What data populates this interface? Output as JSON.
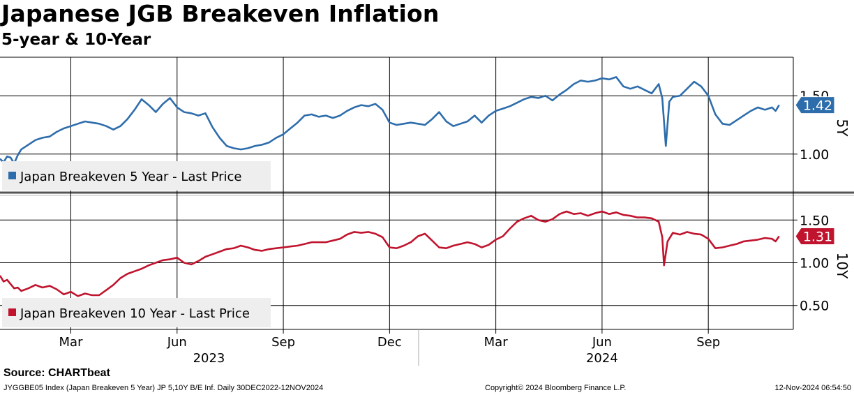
{
  "title": "Japanese JGB Breakeven Inflation",
  "subtitle": "5-year & 10-Year",
  "source": "Source: CHARTbeat",
  "footer": {
    "left": "JYGGBE05 Index (Japan Breakeven 5 Year) JP 5,10Y B/E Inf.  Daily 30DEC2022-12NOV2024",
    "center": "Copyright© 2024 Bloomberg Finance L.P.",
    "right": "12-Nov-2024 06:54:50"
  },
  "colors": {
    "five_year": "#2e6dab",
    "ten_year": "#c0142e",
    "grid": "#000000",
    "legend_bg": "#eeeeee"
  },
  "chart_data": {
    "type": "line",
    "x_months": [
      {
        "label": "Mar",
        "t": 2.0
      },
      {
        "label": "Jun",
        "t": 5.0
      },
      {
        "label": "Sep",
        "t": 8.0
      },
      {
        "label": "Dec",
        "t": 11.0
      },
      {
        "label": "Mar",
        "t": 14.0
      },
      {
        "label": "Jun",
        "t": 17.0
      },
      {
        "label": "Sep",
        "t": 20.0
      }
    ],
    "x_years": [
      {
        "label": "2023",
        "t": 5.9
      },
      {
        "label": "2024",
        "t": 17.0
      }
    ],
    "x_range": [
      0,
      22.4
    ],
    "year_divider_t": 11.0,
    "panels": [
      {
        "axis_label": "5Y",
        "series_name": "Japan Breakeven 5 Year - Last Price",
        "last_value": "1.42",
        "ylim": [
          0.67,
          1.83
        ],
        "yticks": [
          "1.00",
          "1.50"
        ],
        "points": [
          [
            0.0,
            0.96
          ],
          [
            0.1,
            0.93
          ],
          [
            0.2,
            0.98
          ],
          [
            0.3,
            0.97
          ],
          [
            0.4,
            0.92
          ],
          [
            0.5,
            0.99
          ],
          [
            0.6,
            1.04
          ],
          [
            0.8,
            1.08
          ],
          [
            1.0,
            1.12
          ],
          [
            1.2,
            1.14
          ],
          [
            1.4,
            1.15
          ],
          [
            1.6,
            1.19
          ],
          [
            1.8,
            1.22
          ],
          [
            2.0,
            1.24
          ],
          [
            2.2,
            1.26
          ],
          [
            2.4,
            1.28
          ],
          [
            2.6,
            1.27
          ],
          [
            2.8,
            1.26
          ],
          [
            3.0,
            1.24
          ],
          [
            3.2,
            1.21
          ],
          [
            3.4,
            1.24
          ],
          [
            3.6,
            1.3
          ],
          [
            3.8,
            1.38
          ],
          [
            4.0,
            1.47
          ],
          [
            4.2,
            1.42
          ],
          [
            4.4,
            1.36
          ],
          [
            4.6,
            1.43
          ],
          [
            4.8,
            1.48
          ],
          [
            5.0,
            1.4
          ],
          [
            5.2,
            1.36
          ],
          [
            5.4,
            1.35
          ],
          [
            5.6,
            1.33
          ],
          [
            5.8,
            1.35
          ],
          [
            6.0,
            1.23
          ],
          [
            6.2,
            1.14
          ],
          [
            6.4,
            1.07
          ],
          [
            6.6,
            1.05
          ],
          [
            6.8,
            1.04
          ],
          [
            7.0,
            1.05
          ],
          [
            7.2,
            1.07
          ],
          [
            7.4,
            1.08
          ],
          [
            7.6,
            1.1
          ],
          [
            7.8,
            1.14
          ],
          [
            8.0,
            1.17
          ],
          [
            8.2,
            1.22
          ],
          [
            8.4,
            1.27
          ],
          [
            8.6,
            1.33
          ],
          [
            8.8,
            1.34
          ],
          [
            9.0,
            1.32
          ],
          [
            9.2,
            1.33
          ],
          [
            9.4,
            1.31
          ],
          [
            9.6,
            1.33
          ],
          [
            9.8,
            1.37
          ],
          [
            10.0,
            1.4
          ],
          [
            10.2,
            1.42
          ],
          [
            10.4,
            1.41
          ],
          [
            10.6,
            1.43
          ],
          [
            10.8,
            1.38
          ],
          [
            11.0,
            1.27
          ],
          [
            11.2,
            1.25
          ],
          [
            11.4,
            1.26
          ],
          [
            11.6,
            1.27
          ],
          [
            11.8,
            1.26
          ],
          [
            12.0,
            1.25
          ],
          [
            12.2,
            1.3
          ],
          [
            12.4,
            1.36
          ],
          [
            12.6,
            1.28
          ],
          [
            12.8,
            1.24
          ],
          [
            13.0,
            1.26
          ],
          [
            13.2,
            1.28
          ],
          [
            13.4,
            1.33
          ],
          [
            13.6,
            1.27
          ],
          [
            13.8,
            1.33
          ],
          [
            14.0,
            1.37
          ],
          [
            14.2,
            1.39
          ],
          [
            14.4,
            1.41
          ],
          [
            14.6,
            1.44
          ],
          [
            14.8,
            1.47
          ],
          [
            15.0,
            1.49
          ],
          [
            15.2,
            1.48
          ],
          [
            15.4,
            1.5
          ],
          [
            15.6,
            1.46
          ],
          [
            15.8,
            1.51
          ],
          [
            16.0,
            1.55
          ],
          [
            16.2,
            1.6
          ],
          [
            16.4,
            1.63
          ],
          [
            16.6,
            1.62
          ],
          [
            16.8,
            1.63
          ],
          [
            17.0,
            1.65
          ],
          [
            17.2,
            1.64
          ],
          [
            17.4,
            1.66
          ],
          [
            17.6,
            1.58
          ],
          [
            17.8,
            1.56
          ],
          [
            18.0,
            1.58
          ],
          [
            18.2,
            1.55
          ],
          [
            18.4,
            1.52
          ],
          [
            18.6,
            1.6
          ],
          [
            18.7,
            1.48
          ],
          [
            18.8,
            1.07
          ],
          [
            18.9,
            1.45
          ],
          [
            19.0,
            1.49
          ],
          [
            19.2,
            1.5
          ],
          [
            19.4,
            1.56
          ],
          [
            19.6,
            1.62
          ],
          [
            19.8,
            1.58
          ],
          [
            20.0,
            1.5
          ],
          [
            20.2,
            1.34
          ],
          [
            20.4,
            1.26
          ],
          [
            20.6,
            1.25
          ],
          [
            20.8,
            1.29
          ],
          [
            21.0,
            1.33
          ],
          [
            21.2,
            1.37
          ],
          [
            21.4,
            1.4
          ],
          [
            21.6,
            1.38
          ],
          [
            21.8,
            1.4
          ],
          [
            21.9,
            1.37
          ],
          [
            22.0,
            1.42
          ]
        ]
      },
      {
        "axis_label": "10Y",
        "series_name": "Japan Breakeven 10 Year - Last Price",
        "last_value": "1.31",
        "ylim": [
          0.22,
          1.78
        ],
        "yticks": [
          "0.50",
          "1.00",
          "1.50"
        ],
        "points": [
          [
            0.0,
            0.85
          ],
          [
            0.1,
            0.78
          ],
          [
            0.2,
            0.8
          ],
          [
            0.3,
            0.75
          ],
          [
            0.4,
            0.7
          ],
          [
            0.5,
            0.71
          ],
          [
            0.6,
            0.67
          ],
          [
            0.8,
            0.7
          ],
          [
            1.0,
            0.74
          ],
          [
            1.2,
            0.71
          ],
          [
            1.4,
            0.73
          ],
          [
            1.6,
            0.69
          ],
          [
            1.8,
            0.63
          ],
          [
            2.0,
            0.66
          ],
          [
            2.2,
            0.61
          ],
          [
            2.4,
            0.64
          ],
          [
            2.6,
            0.62
          ],
          [
            2.8,
            0.62
          ],
          [
            3.0,
            0.68
          ],
          [
            3.2,
            0.74
          ],
          [
            3.4,
            0.82
          ],
          [
            3.6,
            0.87
          ],
          [
            3.8,
            0.9
          ],
          [
            4.0,
            0.93
          ],
          [
            4.2,
            0.97
          ],
          [
            4.4,
            1.0
          ],
          [
            4.6,
            1.03
          ],
          [
            4.8,
            1.04
          ],
          [
            5.0,
            1.06
          ],
          [
            5.2,
            1.0
          ],
          [
            5.4,
            0.98
          ],
          [
            5.6,
            1.02
          ],
          [
            5.8,
            1.07
          ],
          [
            6.0,
            1.1
          ],
          [
            6.2,
            1.13
          ],
          [
            6.4,
            1.16
          ],
          [
            6.6,
            1.17
          ],
          [
            6.8,
            1.2
          ],
          [
            7.0,
            1.18
          ],
          [
            7.2,
            1.15
          ],
          [
            7.4,
            1.14
          ],
          [
            7.6,
            1.16
          ],
          [
            7.8,
            1.17
          ],
          [
            8.0,
            1.18
          ],
          [
            8.2,
            1.19
          ],
          [
            8.4,
            1.2
          ],
          [
            8.6,
            1.22
          ],
          [
            8.8,
            1.24
          ],
          [
            9.0,
            1.24
          ],
          [
            9.2,
            1.24
          ],
          [
            9.4,
            1.26
          ],
          [
            9.6,
            1.28
          ],
          [
            9.8,
            1.33
          ],
          [
            10.0,
            1.36
          ],
          [
            10.2,
            1.35
          ],
          [
            10.4,
            1.36
          ],
          [
            10.6,
            1.34
          ],
          [
            10.8,
            1.3
          ],
          [
            11.0,
            1.18
          ],
          [
            11.2,
            1.17
          ],
          [
            11.4,
            1.2
          ],
          [
            11.6,
            1.24
          ],
          [
            11.8,
            1.31
          ],
          [
            12.0,
            1.34
          ],
          [
            12.2,
            1.26
          ],
          [
            12.4,
            1.18
          ],
          [
            12.6,
            1.17
          ],
          [
            12.8,
            1.2
          ],
          [
            13.0,
            1.22
          ],
          [
            13.2,
            1.24
          ],
          [
            13.4,
            1.22
          ],
          [
            13.6,
            1.18
          ],
          [
            13.8,
            1.21
          ],
          [
            14.0,
            1.27
          ],
          [
            14.2,
            1.31
          ],
          [
            14.4,
            1.4
          ],
          [
            14.6,
            1.48
          ],
          [
            14.8,
            1.52
          ],
          [
            15.0,
            1.55
          ],
          [
            15.2,
            1.5
          ],
          [
            15.4,
            1.48
          ],
          [
            15.6,
            1.51
          ],
          [
            15.8,
            1.57
          ],
          [
            16.0,
            1.6
          ],
          [
            16.2,
            1.57
          ],
          [
            16.4,
            1.58
          ],
          [
            16.6,
            1.55
          ],
          [
            16.8,
            1.58
          ],
          [
            17.0,
            1.6
          ],
          [
            17.2,
            1.57
          ],
          [
            17.4,
            1.59
          ],
          [
            17.6,
            1.56
          ],
          [
            17.8,
            1.55
          ],
          [
            18.0,
            1.53
          ],
          [
            18.2,
            1.53
          ],
          [
            18.4,
            1.52
          ],
          [
            18.6,
            1.48
          ],
          [
            18.7,
            1.3
          ],
          [
            18.75,
            0.97
          ],
          [
            18.85,
            1.25
          ],
          [
            19.0,
            1.35
          ],
          [
            19.2,
            1.33
          ],
          [
            19.4,
            1.36
          ],
          [
            19.6,
            1.34
          ],
          [
            19.8,
            1.33
          ],
          [
            20.0,
            1.28
          ],
          [
            20.2,
            1.17
          ],
          [
            20.4,
            1.18
          ],
          [
            20.6,
            1.2
          ],
          [
            20.8,
            1.22
          ],
          [
            21.0,
            1.25
          ],
          [
            21.2,
            1.26
          ],
          [
            21.4,
            1.27
          ],
          [
            21.6,
            1.29
          ],
          [
            21.8,
            1.28
          ],
          [
            21.9,
            1.25
          ],
          [
            22.0,
            1.31
          ]
        ]
      }
    ]
  }
}
